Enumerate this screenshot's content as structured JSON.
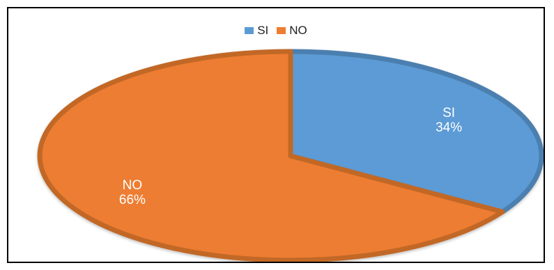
{
  "chart_data": {
    "type": "pie",
    "title": "",
    "slices": [
      {
        "label": "SI",
        "value": 34,
        "percent_label": "34%",
        "color": "#5B9BD5"
      },
      {
        "label": "NO",
        "value": 66,
        "percent_label": "66%",
        "color": "#ED7D31"
      }
    ],
    "legend": {
      "position": "top",
      "items": [
        {
          "label": "SI",
          "color": "#5B9BD5"
        },
        {
          "label": "NO",
          "color": "#ED7D31"
        }
      ]
    }
  }
}
